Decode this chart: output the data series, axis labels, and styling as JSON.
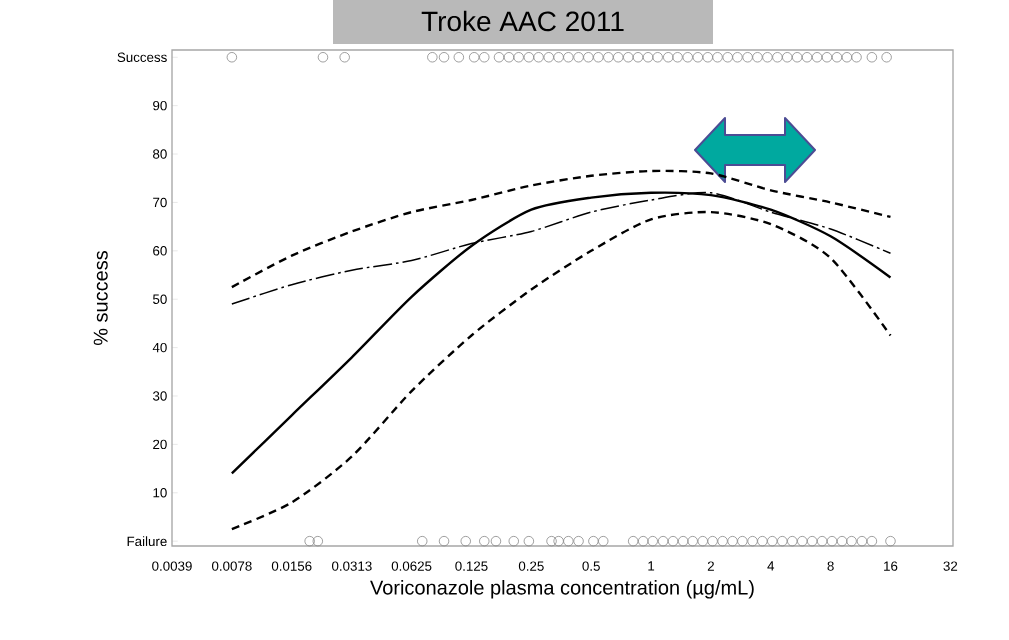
{
  "chart_data": {
    "type": "line",
    "title": "Troke AAC 2011",
    "xlabel": "Voriconazole plasma concentration (µg/mL)",
    "ylabel": "% success",
    "log": "x",
    "xlim": [
      0.0039,
      33
    ],
    "ylim": [
      -1,
      101.5
    ],
    "xticks": [
      0.0039,
      0.0078,
      0.0156,
      0.0313,
      0.0625,
      0.125,
      0.25,
      0.5,
      1,
      2,
      4,
      8,
      16,
      32
    ],
    "yticks": [
      {
        "value": 0,
        "label": "Failure"
      },
      10,
      20,
      30,
      40,
      50,
      60,
      70,
      80,
      90,
      {
        "value": 100,
        "label": "Success"
      }
    ],
    "series": [
      {
        "type": "scatter",
        "marker": "circle",
        "color": "#888888",
        "x": [
          0.0078,
          0.0224,
          0.0288,
          0.0795,
          0.091,
          0.108,
          0.129,
          0.145,
          0.172,
          0.193,
          0.216,
          0.243,
          0.272,
          0.306,
          0.343,
          0.384,
          0.432,
          0.484,
          0.543,
          0.61,
          0.684,
          0.768,
          0.86,
          0.966,
          1.08,
          1.22,
          1.36,
          1.53,
          1.72,
          1.93,
          2.16,
          2.43,
          2.72,
          3.06,
          3.43,
          3.85,
          4.32,
          4.84,
          5.43,
          6.09,
          6.84,
          7.67,
          8.61,
          9.66,
          10.8,
          12.9,
          15.3
        ],
        "values": [
          100,
          100,
          100,
          100,
          100,
          100,
          100,
          100,
          100,
          100,
          100,
          100,
          100,
          100,
          100,
          100,
          100,
          100,
          100,
          100,
          100,
          100,
          100,
          100,
          100,
          100,
          100,
          100,
          100,
          100,
          100,
          100,
          100,
          100,
          100,
          100,
          100,
          100,
          100,
          100,
          100,
          100,
          100,
          100,
          100,
          100,
          100
        ]
      },
      {
        "type": "scatter",
        "marker": "circle",
        "color": "#888888",
        "x": [
          0.0192,
          0.0211,
          0.0707,
          0.091,
          0.117,
          0.145,
          0.166,
          0.204,
          0.243,
          0.316,
          0.343,
          0.384,
          0.432,
          0.513,
          0.575,
          0.813,
          0.913,
          1.02,
          1.15,
          1.29,
          1.45,
          1.62,
          1.82,
          2.04,
          2.29,
          2.57,
          2.88,
          3.24,
          3.63,
          4.07,
          4.57,
          5.13,
          5.76,
          6.46,
          7.25,
          8.13,
          9.13,
          10.2,
          11.5,
          12.9,
          16
        ],
        "values": [
          0,
          0,
          0,
          0,
          0,
          0,
          0,
          0,
          0,
          0,
          0,
          0,
          0,
          0,
          0,
          0,
          0,
          0,
          0,
          0,
          0,
          0,
          0,
          0,
          0,
          0,
          0,
          0,
          0,
          0,
          0,
          0,
          0,
          0,
          0,
          0,
          0,
          0,
          0,
          0,
          0
        ]
      },
      {
        "marker": "none",
        "line_style": "solid",
        "color": "#000000",
        "x": [
          0.0078,
          0.0156,
          0.0313,
          0.0625,
          0.125,
          0.25,
          0.5,
          1,
          2,
          4,
          8,
          16
        ],
        "values": [
          14,
          26,
          38,
          50.5,
          61,
          68.5,
          71,
          72,
          71.5,
          68.5,
          63,
          54.5
        ]
      },
      {
        "marker": "none",
        "line_style": "dashed",
        "color": "#000000",
        "x": [
          0.0078,
          0.0156,
          0.0313,
          0.0625,
          0.125,
          0.25,
          0.5,
          1,
          2,
          4,
          8,
          16
        ],
        "values": [
          52.5,
          59,
          64,
          68,
          70.5,
          73.5,
          75.5,
          76.5,
          76,
          72.5,
          70,
          67
        ]
      },
      {
        "marker": "none",
        "line_style": "dashed",
        "color": "#000000",
        "x": [
          0.0078,
          0.0156,
          0.0313,
          0.0625,
          0.125,
          0.25,
          0.5,
          1,
          2,
          4,
          8,
          16
        ],
        "values": [
          2.5,
          8,
          17.5,
          31,
          42.5,
          52,
          60,
          66.5,
          68,
          65.5,
          58.5,
          42.5
        ]
      },
      {
        "marker": "none",
        "line_style": "dashdot",
        "color": "#000000",
        "x": [
          0.0078,
          0.0156,
          0.0313,
          0.0625,
          0.125,
          0.25,
          0.5,
          1,
          2,
          4,
          8,
          16
        ],
        "values": [
          49,
          53,
          56,
          58,
          61.5,
          64,
          68,
          70.5,
          72,
          68,
          64.5,
          59.5
        ]
      }
    ]
  }
}
